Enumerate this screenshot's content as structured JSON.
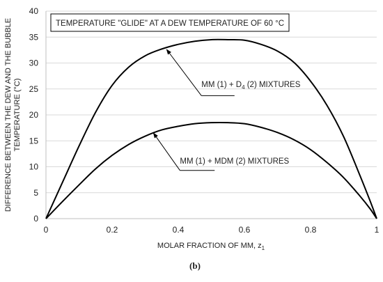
{
  "chart_data": {
    "type": "line",
    "title": "TEMPERATURE \"GLIDE\" AT A DEW TEMPERATURE OF 60 °C",
    "xlabel": "MOLAR FRACTION OF MM, z",
    "xlabel_sub": "1",
    "ylabel_line1": "DIFFERENCE BETWEEN THE DEW AND THE BUBBLE",
    "ylabel_line2": "TEMPERATURE (°C)",
    "xlim": [
      0,
      1
    ],
    "ylim": [
      0,
      40
    ],
    "x_ticks": [
      "0",
      "0.2",
      "0.4",
      "0.6",
      "0.8",
      "1"
    ],
    "y_ticks": [
      "0",
      "5",
      "10",
      "15",
      "20",
      "25",
      "30",
      "35",
      "40"
    ],
    "grid": "horizontal",
    "series": [
      {
        "name": "MM (1) + D4 (2) MIXTURES",
        "x": [
          0,
          0.05,
          0.1,
          0.15,
          0.2,
          0.25,
          0.3,
          0.35,
          0.4,
          0.45,
          0.5,
          0.55,
          0.6,
          0.65,
          0.7,
          0.75,
          0.8,
          0.85,
          0.9,
          0.95,
          0.98,
          1
        ],
        "y": [
          0,
          7,
          14,
          20.5,
          25.7,
          29.2,
          31.4,
          32.7,
          33.6,
          34.2,
          34.5,
          34.5,
          34.4,
          33.6,
          32.3,
          30.1,
          26.5,
          21.8,
          15.8,
          8.2,
          3.4,
          0
        ]
      },
      {
        "name": "MM (1) + MDM (2) MIXTURES",
        "x": [
          0,
          0.05,
          0.1,
          0.15,
          0.2,
          0.25,
          0.3,
          0.35,
          0.4,
          0.45,
          0.5,
          0.55,
          0.6,
          0.65,
          0.7,
          0.75,
          0.8,
          0.85,
          0.9,
          0.95,
          0.98,
          1
        ],
        "y": [
          0,
          3.3,
          6.5,
          9.6,
          12.2,
          14.3,
          15.9,
          17.1,
          17.8,
          18.3,
          18.5,
          18.5,
          18.3,
          17.6,
          16.6,
          15.2,
          13.3,
          10.8,
          7.9,
          4.3,
          1.9,
          0
        ]
      }
    ],
    "annotations": [
      {
        "label_main": "MM (1) + D",
        "label_sub": "4",
        "label_rest": " (2) MIXTURES",
        "text_at": [
          0.47,
          25.4
        ],
        "line_from": [
          0.47,
          23.7
        ],
        "line_to": [
          0.57,
          23.7
        ],
        "arrow_to": [
          0.365,
          32.6
        ]
      },
      {
        "label_main": "MM (1) + MDM (2) MIXTURES",
        "label_sub": "",
        "label_rest": "",
        "text_at": [
          0.405,
          10.6
        ],
        "line_from": [
          0.405,
          9.3
        ],
        "line_to": [
          0.51,
          9.3
        ],
        "arrow_to": [
          0.325,
          16.5
        ]
      }
    ],
    "panel_label": "(b)"
  }
}
